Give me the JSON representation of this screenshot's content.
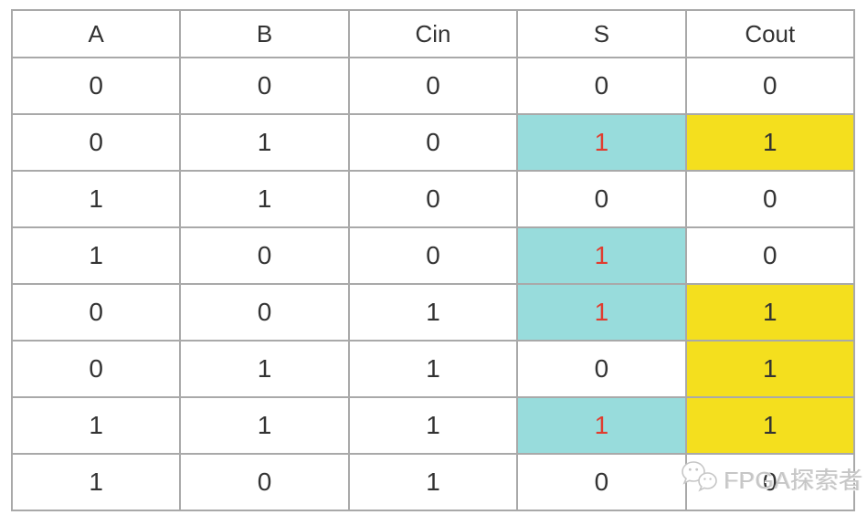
{
  "colors": {
    "highlight_cyan": "#98dcdc",
    "highlight_yellow": "#f4df1e",
    "red_text": "#e03c2f",
    "border": "#a9a9a9",
    "text": "#333333",
    "watermark": "#c6c6c6"
  },
  "watermark": {
    "text": "FPGA探索者",
    "icon": "wechat-icon"
  },
  "chart_data": {
    "type": "table",
    "columns": [
      "A",
      "B",
      "Cin",
      "S",
      "Cout"
    ],
    "rows": [
      {
        "cells": [
          {
            "v": "0"
          },
          {
            "v": "0"
          },
          {
            "v": "0"
          },
          {
            "v": "0"
          },
          {
            "v": "0"
          }
        ]
      },
      {
        "cells": [
          {
            "v": "0"
          },
          {
            "v": "1"
          },
          {
            "v": "0"
          },
          {
            "v": "1",
            "bg": "cyan",
            "fg": "red"
          },
          {
            "v": "1",
            "bg": "yellow"
          }
        ]
      },
      {
        "cells": [
          {
            "v": "1"
          },
          {
            "v": "1"
          },
          {
            "v": "0"
          },
          {
            "v": "0"
          },
          {
            "v": "0"
          }
        ]
      },
      {
        "cells": [
          {
            "v": "1"
          },
          {
            "v": "0"
          },
          {
            "v": "0"
          },
          {
            "v": "1",
            "bg": "cyan",
            "fg": "red"
          },
          {
            "v": "0"
          }
        ]
      },
      {
        "cells": [
          {
            "v": "0"
          },
          {
            "v": "0"
          },
          {
            "v": "1"
          },
          {
            "v": "1",
            "bg": "cyan",
            "fg": "red"
          },
          {
            "v": "1",
            "bg": "yellow"
          }
        ]
      },
      {
        "cells": [
          {
            "v": "0"
          },
          {
            "v": "1"
          },
          {
            "v": "1"
          },
          {
            "v": "0"
          },
          {
            "v": "1",
            "bg": "yellow"
          }
        ]
      },
      {
        "cells": [
          {
            "v": "1"
          },
          {
            "v": "1"
          },
          {
            "v": "1"
          },
          {
            "v": "1",
            "bg": "cyan",
            "fg": "red"
          },
          {
            "v": "1",
            "bg": "yellow"
          }
        ]
      },
      {
        "cells": [
          {
            "v": "1"
          },
          {
            "v": "0"
          },
          {
            "v": "1"
          },
          {
            "v": "0"
          },
          {
            "v": "0"
          }
        ]
      }
    ]
  }
}
